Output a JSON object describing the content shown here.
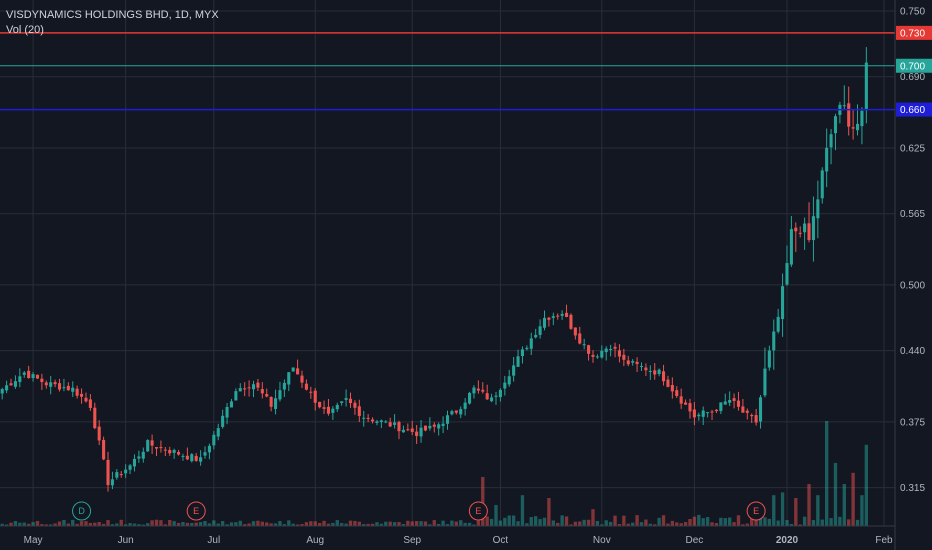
{
  "legend": {
    "title": "VISDYNAMICS HOLDINGS BHD, 1D, MYX",
    "volume": "Vol (20)"
  },
  "colors": {
    "background": "#131722",
    "grid": "#2a2e39",
    "up": "#26a69a",
    "down": "#ef5350",
    "resistance_line": "#e53935",
    "support_line": "#1e1ed8",
    "last_price": "#26a69a"
  },
  "chart_data": {
    "type": "candlestick",
    "title": "VISDYNAMICS HOLDINGS BHD, 1D, MYX",
    "ylim": [
      0.28,
      0.76
    ],
    "y_ticks": [
      "0.750",
      "0.690",
      "0.625",
      "0.565",
      "0.500",
      "0.440",
      "0.375",
      "0.315"
    ],
    "y_tick_values": [
      0.75,
      0.69,
      0.625,
      0.565,
      0.5,
      0.44,
      0.375,
      0.315
    ],
    "x_labels": [
      {
        "label": "May",
        "bar": 7
      },
      {
        "label": "Jun",
        "bar": 28
      },
      {
        "label": "Jul",
        "bar": 48
      },
      {
        "label": "Aug",
        "bar": 71
      },
      {
        "label": "Sep",
        "bar": 93
      },
      {
        "label": "Oct",
        "bar": 113
      },
      {
        "label": "Nov",
        "bar": 136
      },
      {
        "label": "Dec",
        "bar": 157
      },
      {
        "label": "2020",
        "bar": 178
      },
      {
        "label": "Feb",
        "bar": 200
      }
    ],
    "bar_count": 203,
    "horizontal_lines": [
      {
        "value": 0.73,
        "label": "0.730",
        "color": "#e53935"
      },
      {
        "value": 0.66,
        "label": "0.660",
        "color": "#1e1ed8"
      },
      {
        "value": 0.7,
        "label": "0.700",
        "color": "#26a69a",
        "kind": "last-price"
      }
    ],
    "events": [
      {
        "letter": "D",
        "bar": 18,
        "color": "#26a69a"
      },
      {
        "letter": "E",
        "bar": 44,
        "color": "#ef5350"
      },
      {
        "letter": "E",
        "bar": 108,
        "color": "#ef5350"
      },
      {
        "letter": "E",
        "bar": 171,
        "color": "#ef5350"
      }
    ],
    "anchors": [
      [
        0,
        0.405
      ],
      [
        5,
        0.42
      ],
      [
        10,
        0.41
      ],
      [
        16,
        0.405
      ],
      [
        20,
        0.39
      ],
      [
        24,
        0.32
      ],
      [
        29,
        0.335
      ],
      [
        33,
        0.355
      ],
      [
        37,
        0.35
      ],
      [
        41,
        0.345
      ],
      [
        45,
        0.34
      ],
      [
        49,
        0.37
      ],
      [
        53,
        0.405
      ],
      [
        57,
        0.41
      ],
      [
        61,
        0.39
      ],
      [
        66,
        0.425
      ],
      [
        70,
        0.4
      ],
      [
        74,
        0.38
      ],
      [
        78,
        0.395
      ],
      [
        82,
        0.38
      ],
      [
        86,
        0.375
      ],
      [
        90,
        0.37
      ],
      [
        94,
        0.365
      ],
      [
        98,
        0.37
      ],
      [
        103,
        0.385
      ],
      [
        107,
        0.405
      ],
      [
        111,
        0.395
      ],
      [
        115,
        0.42
      ],
      [
        119,
        0.445
      ],
      [
        123,
        0.47
      ],
      [
        127,
        0.475
      ],
      [
        131,
        0.45
      ],
      [
        134,
        0.435
      ],
      [
        138,
        0.445
      ],
      [
        141,
        0.43
      ],
      [
        145,
        0.425
      ],
      [
        149,
        0.42
      ],
      [
        153,
        0.4
      ],
      [
        157,
        0.38
      ],
      [
        161,
        0.385
      ],
      [
        165,
        0.395
      ],
      [
        169,
        0.38
      ],
      [
        171,
        0.375
      ],
      [
        173,
        0.42
      ],
      [
        175,
        0.45
      ],
      [
        177,
        0.49
      ],
      [
        179,
        0.545
      ],
      [
        181,
        0.555
      ],
      [
        183,
        0.54
      ],
      [
        185,
        0.58
      ],
      [
        187,
        0.62
      ],
      [
        189,
        0.655
      ],
      [
        191,
        0.66
      ],
      [
        193,
        0.645
      ],
      [
        195,
        0.65
      ],
      [
        196,
        0.7
      ]
    ],
    "volume_spikes": [
      {
        "bar": 109,
        "value": 0.35
      },
      {
        "bar": 112,
        "value": 0.15
      },
      {
        "bar": 118,
        "value": 0.22
      },
      {
        "bar": 124,
        "value": 0.2
      },
      {
        "bar": 134,
        "value": 0.12
      },
      {
        "bar": 170,
        "value": 0.12
      },
      {
        "bar": 175,
        "value": 0.22
      },
      {
        "bar": 177,
        "value": 0.24
      },
      {
        "bar": 180,
        "value": 0.2
      },
      {
        "bar": 183,
        "value": 0.3
      },
      {
        "bar": 185,
        "value": 0.22
      },
      {
        "bar": 187,
        "value": 0.75
      },
      {
        "bar": 189,
        "value": 0.45
      },
      {
        "bar": 191,
        "value": 0.3
      },
      {
        "bar": 193,
        "value": 0.38
      },
      {
        "bar": 195,
        "value": 0.22
      },
      {
        "bar": 196,
        "value": 0.58
      }
    ]
  }
}
